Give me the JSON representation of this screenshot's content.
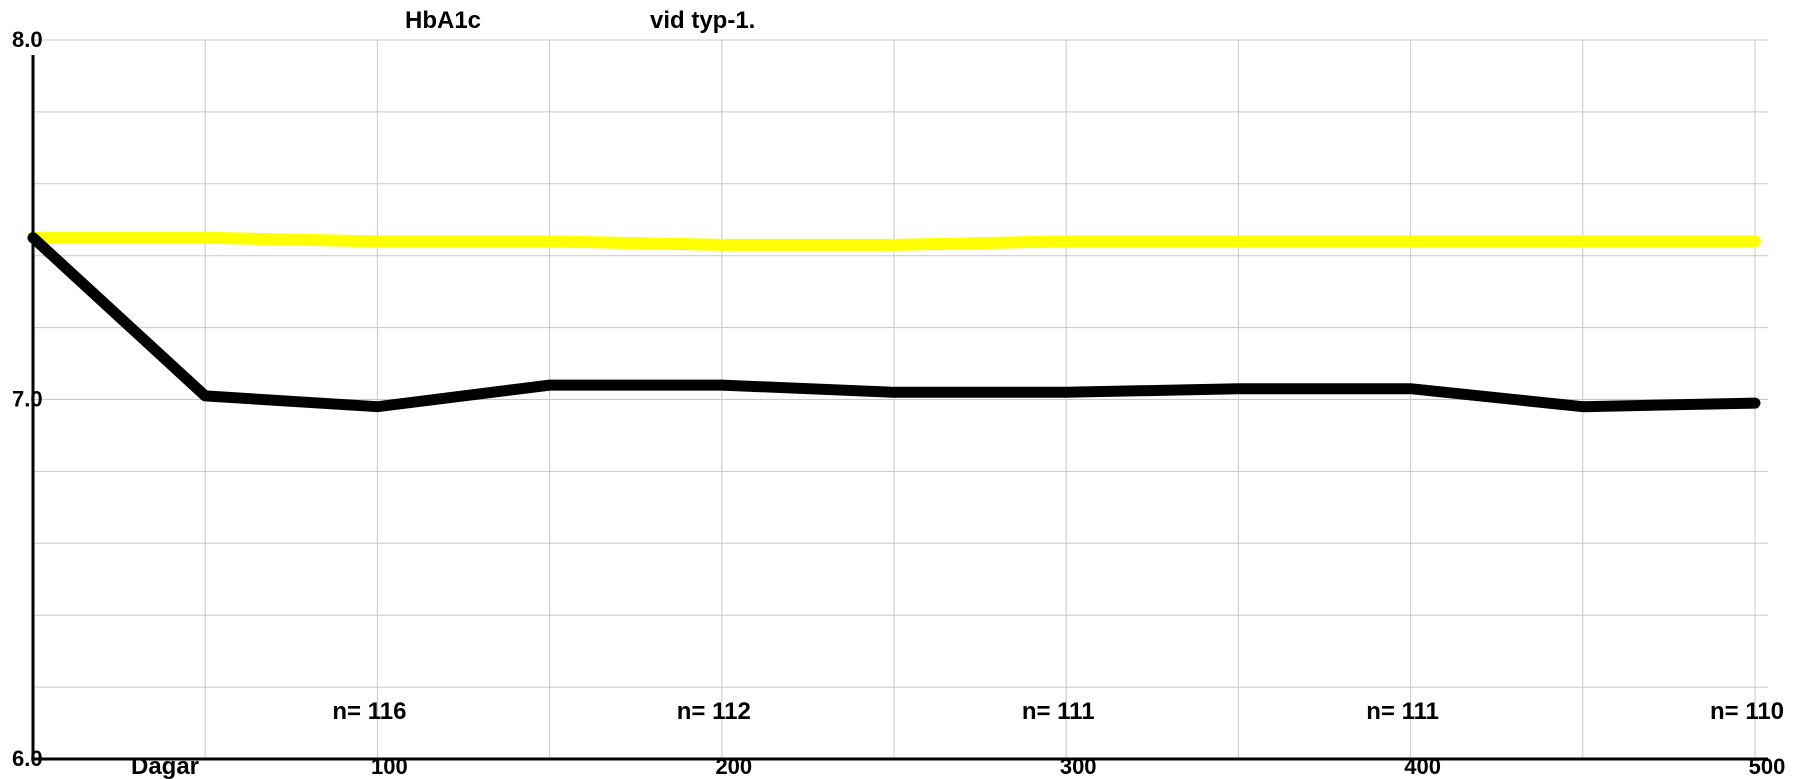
{
  "chart_data": {
    "type": "line",
    "title_left": "HbA1c",
    "title_right": "vid typ-1.",
    "xlabel": "Dagar",
    "ylabel": "",
    "xlim": [
      0,
      500
    ],
    "ylim": [
      6.0,
      8.0
    ],
    "x_ticks": [
      100,
      200,
      300,
      400,
      500
    ],
    "y_tick_labels": [
      "8.0",
      "7.0",
      "6.0"
    ],
    "y_ticks": [
      8.0,
      7.0,
      6.0
    ],
    "grid": true,
    "series": [
      {
        "color": "#ffff00",
        "x": [
          0,
          50,
          100,
          150,
          200,
          250,
          300,
          350,
          400,
          450,
          500
        ],
        "y": [
          7.45,
          7.45,
          7.44,
          7.44,
          7.43,
          7.43,
          7.44,
          7.44,
          7.44,
          7.44,
          7.44
        ]
      },
      {
        "color": "#000000",
        "x": [
          0,
          50,
          100,
          150,
          200,
          250,
          300,
          350,
          400,
          450,
          500
        ],
        "y": [
          7.45,
          7.01,
          6.98,
          7.04,
          7.04,
          7.02,
          7.02,
          7.03,
          7.03,
          6.98,
          6.99
        ]
      }
    ],
    "annotations": [
      {
        "x": 100,
        "text": "n= 116"
      },
      {
        "x": 200,
        "text": "n= 112"
      },
      {
        "x": 300,
        "text": "n= 111"
      },
      {
        "x": 400,
        "text": "n= 111"
      },
      {
        "x": 500,
        "text": "n= 110"
      }
    ]
  }
}
